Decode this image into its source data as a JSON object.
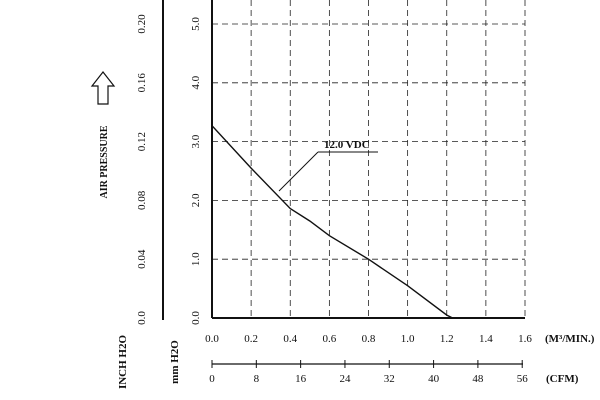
{
  "chart_data": {
    "type": "line",
    "title": "",
    "left_axis_label": "AIR PRESSURE",
    "left_axis_unit_1": "INCH H2O",
    "left_axis_unit_2": "mm H2O",
    "inch_ticks": [
      "0.0",
      "0.04",
      "0.08",
      "0.12",
      "0.16",
      "0.20"
    ],
    "mm_ticks": [
      "0.0",
      "1.0",
      "2.0",
      "3.0",
      "4.0",
      "5.0"
    ],
    "x_unit_m3": "(M³/MIN.)",
    "x_unit_cfm": "(CFM)",
    "m3_ticks": [
      "0.0",
      "0.2",
      "0.4",
      "0.6",
      "0.8",
      "1.0",
      "1.2",
      "1.4",
      "1.6"
    ],
    "cfm_ticks": [
      "0",
      "8",
      "16",
      "24",
      "32",
      "40",
      "48",
      "56"
    ],
    "xlim": [
      0,
      1.6
    ],
    "ylim_mm": [
      0,
      5.0
    ],
    "series": [
      {
        "name": "12.0 VDC",
        "x": [
          0.0,
          0.2,
          0.4,
          0.5,
          0.6,
          0.8,
          1.0,
          1.2,
          1.23
        ],
        "y": [
          3.27,
          2.55,
          1.86,
          1.65,
          1.4,
          1.0,
          0.55,
          0.05,
          0.0
        ]
      }
    ]
  }
}
